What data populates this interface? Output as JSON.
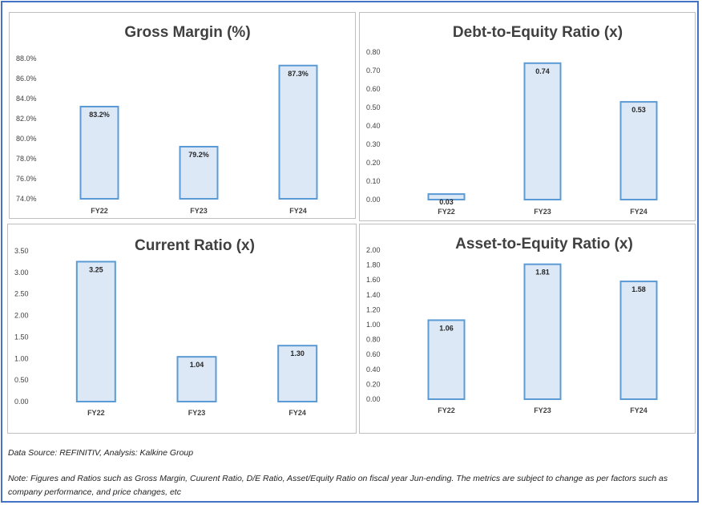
{
  "chart_data": [
    {
      "type": "bar",
      "title": "Gross Margin (%)",
      "categories": [
        "FY22",
        "FY23",
        "FY24"
      ],
      "values": [
        83.2,
        79.2,
        87.3
      ],
      "value_labels": [
        "83.2%",
        "79.2%",
        "87.3%"
      ],
      "ylim": [
        74,
        88
      ],
      "yticks": [
        "74.0%",
        "76.0%",
        "78.0%",
        "80.0%",
        "82.0%",
        "84.0%",
        "86.0%",
        "88.0%"
      ],
      "xlabel": "",
      "ylabel": "",
      "grid": false,
      "legend": "none"
    },
    {
      "type": "bar",
      "title": "Debt-to-Equity Ratio (x)",
      "categories": [
        "FY22",
        "FY23",
        "FY24"
      ],
      "values": [
        0.03,
        0.74,
        0.53
      ],
      "value_labels": [
        "0.03",
        "0.74",
        "0.53"
      ],
      "ylim": [
        0,
        0.8
      ],
      "yticks": [
        "0.00",
        "0.10",
        "0.20",
        "0.30",
        "0.40",
        "0.50",
        "0.60",
        "0.70",
        "0.80"
      ],
      "xlabel": "",
      "ylabel": "",
      "grid": false,
      "legend": "none"
    },
    {
      "type": "bar",
      "title": "Current Ratio (x)",
      "categories": [
        "FY22",
        "FY23",
        "FY24"
      ],
      "values": [
        3.25,
        1.04,
        1.3
      ],
      "value_labels": [
        "3.25",
        "1.04",
        "1.30"
      ],
      "ylim": [
        0,
        3.5
      ],
      "yticks": [
        "0.00",
        "0.50",
        "1.00",
        "1.50",
        "2.00",
        "2.50",
        "3.00",
        "3.50"
      ],
      "xlabel": "",
      "ylabel": "",
      "grid": false,
      "legend": "none"
    },
    {
      "type": "bar",
      "title": "Asset-to-Equity Ratio (x)",
      "categories": [
        "FY22",
        "FY23",
        "FY24"
      ],
      "values": [
        1.06,
        1.81,
        1.58
      ],
      "value_labels": [
        "1.06",
        "1.81",
        "1.58"
      ],
      "ylim": [
        0,
        2.0
      ],
      "yticks": [
        "0.00",
        "0.20",
        "0.40",
        "0.60",
        "0.80",
        "1.00",
        "1.20",
        "1.40",
        "1.60",
        "1.80",
        "2.00"
      ],
      "xlabel": "",
      "ylabel": "",
      "grid": false,
      "legend": "none"
    }
  ],
  "colors": {
    "bar_fill": "#dce8f6",
    "bar_stroke": "#5b9bd5",
    "frame": "#4472c4"
  },
  "footer": {
    "source": "Data Source: REFINITIV, Analysis: Kalkine Group",
    "note": "Note: Figures and Ratios such as Gross Margin, Cuurent Ratio, D/E Ratio, Asset/Equity Ratio on fiscal year Jun-ending. The metrics are subject to change as per factors such as company performance, and price changes, etc"
  }
}
